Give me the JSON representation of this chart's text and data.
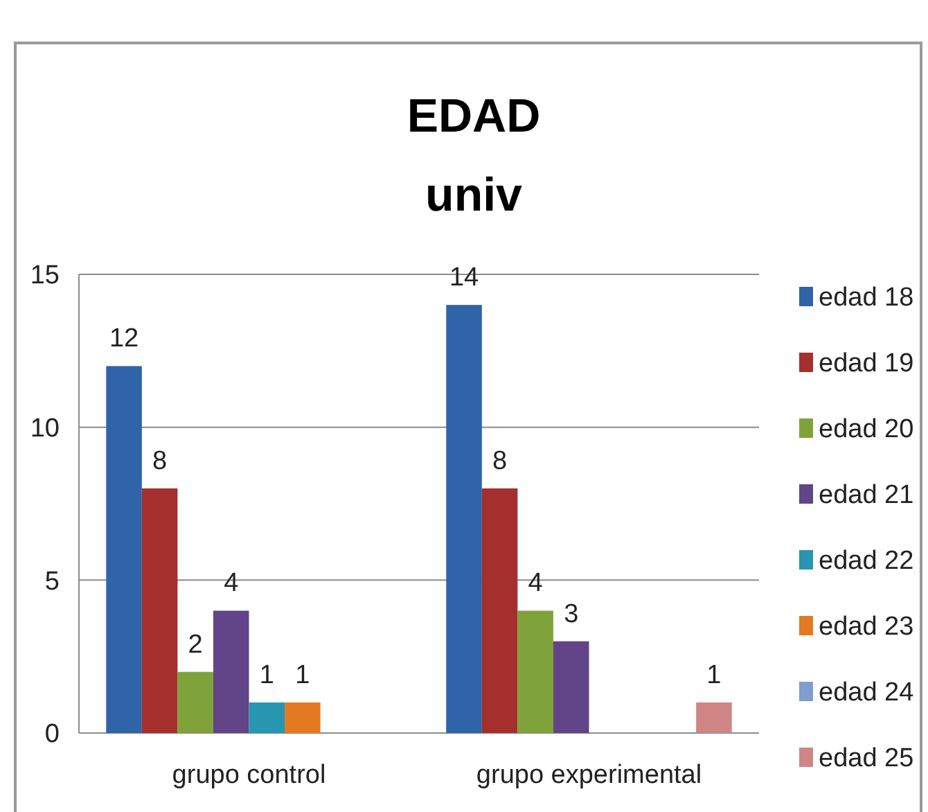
{
  "chart_data": {
    "type": "bar",
    "title": "EDAD",
    "subtitle": "univ",
    "categories": [
      "grupo control",
      "grupo experimental"
    ],
    "series": [
      {
        "name": "edad 18",
        "color": "#2f64a8",
        "values": [
          12,
          14
        ]
      },
      {
        "name": "edad 19",
        "color": "#a52f2d",
        "values": [
          8,
          8
        ]
      },
      {
        "name": "edad 20",
        "color": "#7fa33a",
        "values": [
          2,
          4
        ]
      },
      {
        "name": "edad 21",
        "color": "#624488",
        "values": [
          4,
          3
        ]
      },
      {
        "name": "edad 22",
        "color": "#2796b1",
        "values": [
          1,
          null
        ]
      },
      {
        "name": "edad 23",
        "color": "#e37a22",
        "values": [
          1,
          null
        ]
      },
      {
        "name": "edad 24",
        "color": "#7f9dcf",
        "values": [
          null,
          null
        ]
      },
      {
        "name": "edad 25",
        "color": "#d08585",
        "values": [
          null,
          1
        ]
      }
    ],
    "ylim": [
      0,
      15
    ],
    "yticks": [
      0,
      5,
      10,
      15
    ],
    "grid": "y",
    "legend": "right",
    "data_labels": true
  }
}
